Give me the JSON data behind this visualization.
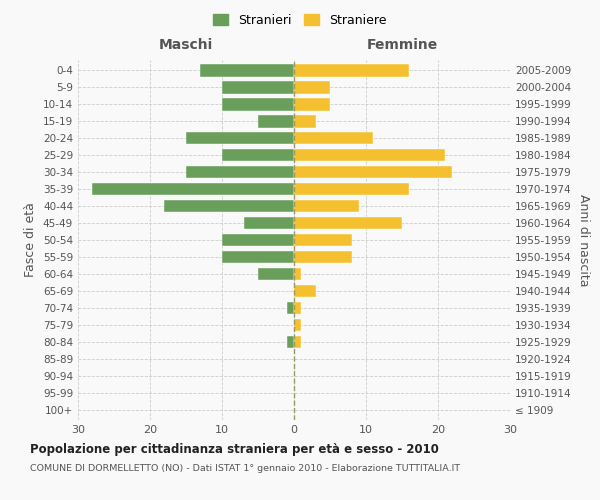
{
  "age_groups": [
    "100+",
    "95-99",
    "90-94",
    "85-89",
    "80-84",
    "75-79",
    "70-74",
    "65-69",
    "60-64",
    "55-59",
    "50-54",
    "45-49",
    "40-44",
    "35-39",
    "30-34",
    "25-29",
    "20-24",
    "15-19",
    "10-14",
    "5-9",
    "0-4"
  ],
  "birth_years": [
    "≤ 1909",
    "1910-1914",
    "1915-1919",
    "1920-1924",
    "1925-1929",
    "1930-1934",
    "1935-1939",
    "1940-1944",
    "1945-1949",
    "1950-1954",
    "1955-1959",
    "1960-1964",
    "1965-1969",
    "1970-1974",
    "1975-1979",
    "1980-1984",
    "1985-1989",
    "1990-1994",
    "1995-1999",
    "2000-2004",
    "2005-2009"
  ],
  "maschi": [
    0,
    0,
    0,
    0,
    1,
    0,
    1,
    0,
    5,
    10,
    10,
    7,
    18,
    28,
    15,
    10,
    15,
    5,
    10,
    10,
    13
  ],
  "femmine": [
    0,
    0,
    0,
    0,
    1,
    1,
    1,
    3,
    1,
    8,
    8,
    15,
    9,
    16,
    22,
    21,
    11,
    3,
    5,
    5,
    16
  ],
  "maschi_color": "#6a9f5b",
  "femmine_color": "#f5c030",
  "background_color": "#f9f9f9",
  "grid_color": "#cccccc",
  "title": "Popolazione per cittadinanza straniera per età e sesso - 2010",
  "subtitle": "COMUNE DI DORMELLETTO (NO) - Dati ISTAT 1° gennaio 2010 - Elaborazione TUTTITALIA.IT",
  "xlabel_left": "Maschi",
  "xlabel_right": "Femmine",
  "ylabel_left": "Fasce di età",
  "ylabel_right": "Anni di nascita",
  "legend_maschi": "Stranieri",
  "legend_femmine": "Straniere",
  "xlim": 30
}
